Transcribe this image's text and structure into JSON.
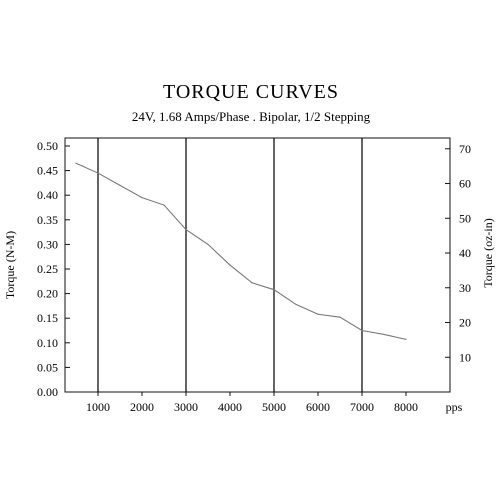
{
  "chart_data": {
    "type": "line",
    "title": "TORQUE CURVES",
    "subtitle": "24V, 1.68 Amps/Phase . Bipolar, 1/2 Stepping",
    "xlabel": "pps",
    "ylabel": "Torque (N-M)",
    "y2label": "Torque (oz-in)",
    "xlim": [
      250,
      9000
    ],
    "ylim": [
      0,
      0.5
    ],
    "y2lim": [
      0,
      70.8
    ],
    "x_ticks": [
      1000,
      2000,
      3000,
      4000,
      5000,
      6000,
      7000,
      8000
    ],
    "y_ticks": [
      "0.00",
      "0.05",
      "0.10",
      "0.15",
      "0.20",
      "0.25",
      "0.30",
      "0.35",
      "0.40",
      "0.45",
      "0.50"
    ],
    "y2_ticks": [
      10,
      20,
      30,
      40,
      50,
      60,
      70
    ],
    "vertical_gridlines": [
      1000,
      3000,
      5000,
      7000
    ],
    "series": [
      {
        "x": [
          500,
          1000,
          1500,
          2000,
          2500,
          3000,
          3500,
          4000,
          4500,
          5000,
          5500,
          6000,
          6500,
          7000,
          7500,
          8000
        ],
        "y": [
          0.465,
          0.445,
          0.42,
          0.395,
          0.38,
          0.33,
          0.3,
          0.258,
          0.222,
          0.208,
          0.178,
          0.158,
          0.152,
          0.125,
          0.117,
          0.107
        ]
      }
    ],
    "line_color": "#777777"
  }
}
